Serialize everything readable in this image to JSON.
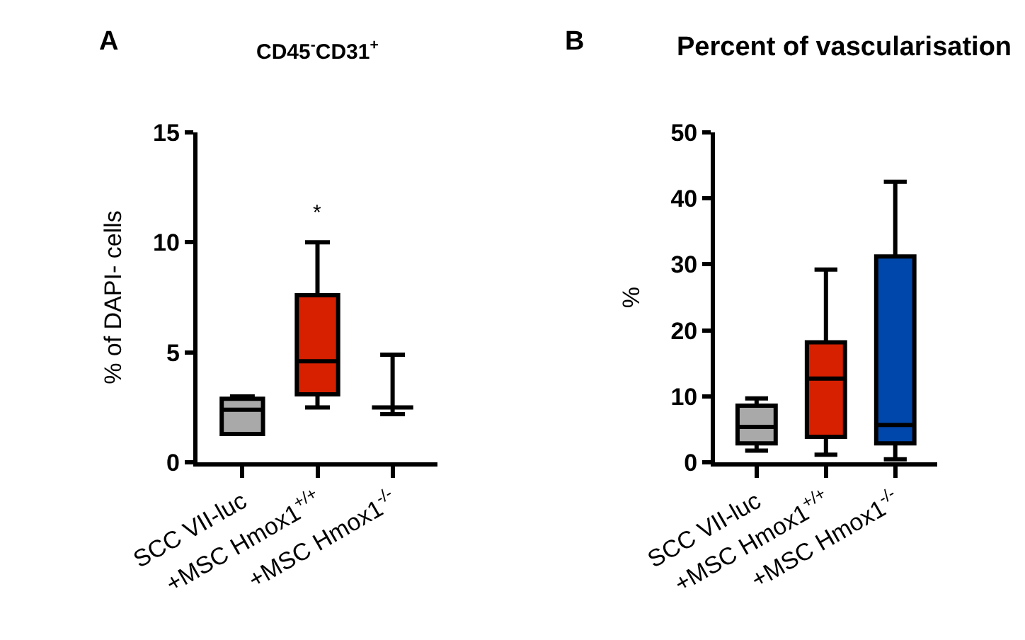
{
  "chart_data": [
    {
      "type": "box",
      "title": "CD45$^{-}$CD31$^{+}$",
      "ylabel": "% of DAPI- cells",
      "categories": [
        "SCC VII-luc",
        "+MSC Hmox1$^{+/+}$",
        "+MSC Hmox1$^{-/-}$"
      ],
      "colors": [
        "#a9a9a9",
        "#d62000",
        "#000000"
      ],
      "boxes": [
        {
          "low": 1.3,
          "q1": 1.3,
          "median": 2.4,
          "q3": 2.9,
          "high": 3.0
        },
        {
          "low": 2.5,
          "q1": 3.1,
          "median": 4.6,
          "q3": 7.6,
          "high": 10.0
        },
        {
          "low": 2.2,
          "q1": 2.5,
          "median": 2.5,
          "q3": 2.5,
          "high": 4.9
        }
      ],
      "ylim": [
        0,
        15
      ],
      "yticks": [
        0,
        5,
        10,
        15
      ],
      "annotations": [
        "A",
        "*"
      ]
    },
    {
      "type": "box",
      "title": "Percent of vascularisation",
      "ylabel": "%",
      "categories": [
        "SCC VII-luc",
        "+MSC Hmox1$^{+/+}$",
        "+MSC Hmox1$^{-/-}$"
      ],
      "colors": [
        "#a9a9a9",
        "#d62000",
        "#0047ab"
      ],
      "boxes": [
        {
          "low": 1.8,
          "q1": 2.9,
          "median": 5.4,
          "q3": 8.6,
          "high": 9.7
        },
        {
          "low": 1.2,
          "q1": 3.9,
          "median": 12.7,
          "q3": 18.2,
          "high": 29.2
        },
        {
          "low": 0.5,
          "q1": 2.9,
          "median": 5.7,
          "q3": 31.2,
          "high": 42.5
        }
      ],
      "ylim": [
        0,
        50
      ],
      "yticks": [
        0,
        10,
        20,
        30,
        40,
        50
      ],
      "annotations": [
        "B"
      ]
    }
  ]
}
